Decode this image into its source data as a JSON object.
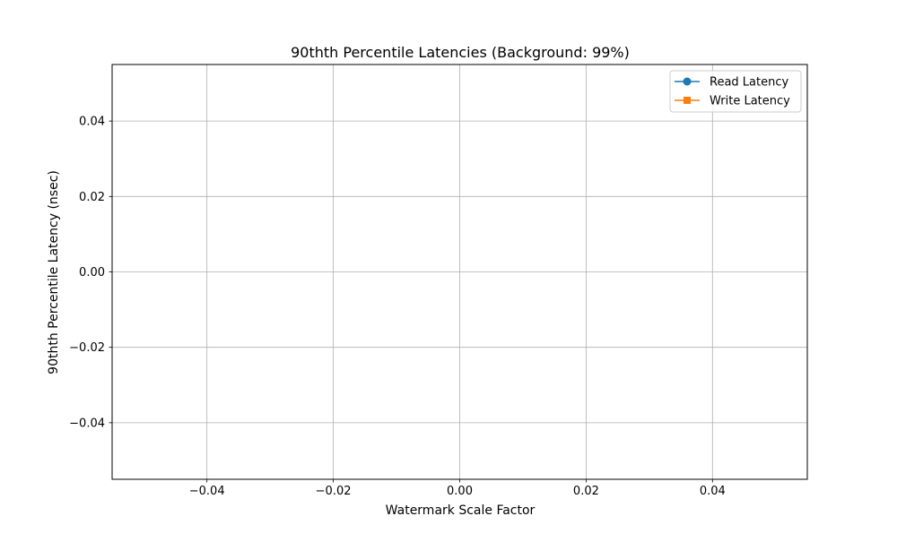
{
  "chart_data": {
    "type": "line",
    "title": "90thth Percentile Latencies (Background: 99%)",
    "xlabel": "Watermark Scale Factor",
    "ylabel": "90thth Percentile Latency (nsec)",
    "xlim": [
      -0.055,
      0.055
    ],
    "ylim": [
      -0.055,
      0.055
    ],
    "x_ticks": [
      -0.04,
      -0.02,
      0.0,
      0.02,
      0.04
    ],
    "x_tick_labels": [
      "−0.04",
      "−0.02",
      "0.00",
      "0.02",
      "0.04"
    ],
    "y_ticks": [
      0.04,
      0.02,
      0.0,
      -0.02,
      -0.04
    ],
    "y_tick_labels": [
      "0.04",
      "0.02",
      "0.00",
      "−0.02",
      "−0.04"
    ],
    "grid": true,
    "legend_position": "top-right",
    "series": [
      {
        "name": "Read Latency",
        "color": "#1f77b4",
        "marker": "circle",
        "x": [],
        "y": []
      },
      {
        "name": "Write Latency",
        "color": "#ff7f0e",
        "marker": "square",
        "x": [],
        "y": []
      }
    ]
  }
}
